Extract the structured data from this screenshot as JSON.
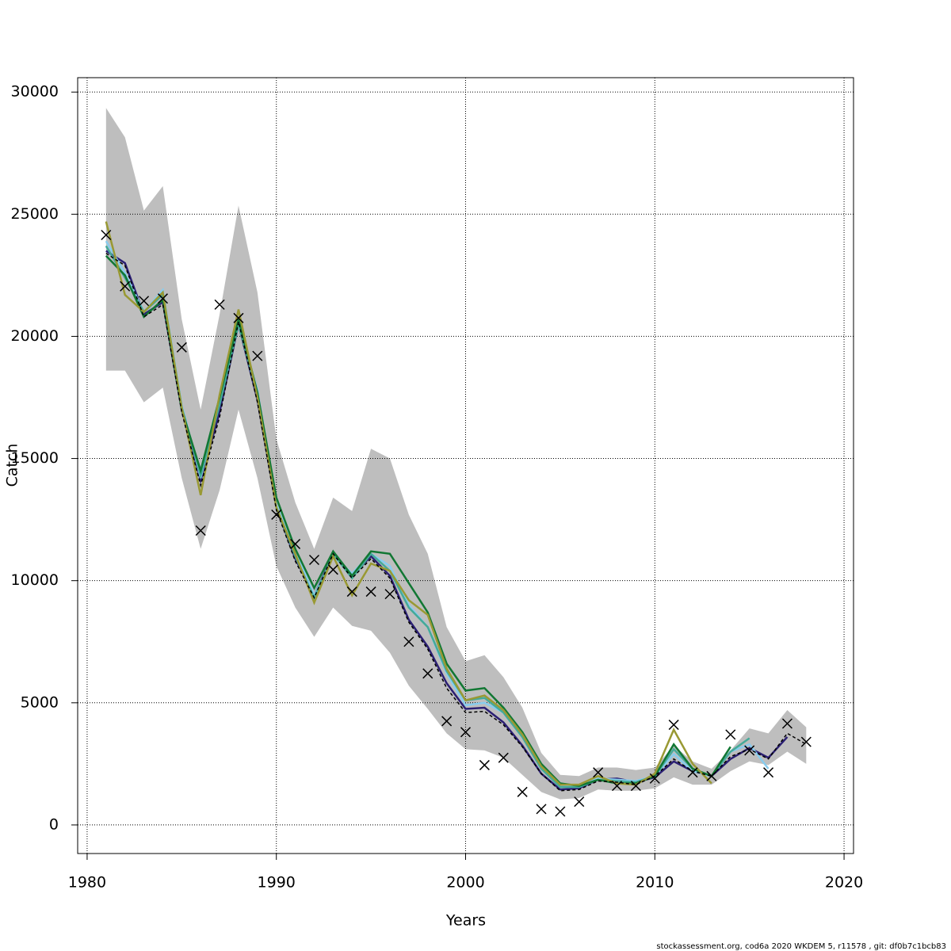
{
  "chart_data": {
    "type": "line",
    "x_label": "Years",
    "y_label": "Catch",
    "footer": "stockassessment.org, cod6a 2020 WKDEM 5, r11578 , git: df0b7c1bcb83",
    "x": [
      1981,
      1982,
      1983,
      1984,
      1985,
      1986,
      1987,
      1988,
      1989,
      1990,
      1991,
      1992,
      1993,
      1994,
      1995,
      1996,
      1997,
      1998,
      1999,
      2000,
      2001,
      2002,
      2003,
      2004,
      2005,
      2006,
      2007,
      2008,
      2009,
      2010,
      2011,
      2012,
      2013,
      2014,
      2015,
      2016,
      2017,
      2018
    ],
    "xlim": [
      1979.5,
      2020.5
    ],
    "xticks": [
      1980,
      1990,
      2000,
      2010,
      2020
    ],
    "ylim": [
      -1170,
      30590
    ],
    "yticks": [
      0,
      5000,
      10000,
      15000,
      20000,
      25000,
      30000
    ],
    "grid": true,
    "band": {
      "color": "#bebebe",
      "upper": [
        29350,
        28150,
        25150,
        26150,
        20700,
        17000,
        20900,
        25350,
        21800,
        15800,
        13200,
        11300,
        13400,
        12850,
        15400,
        15000,
        12700,
        11100,
        8100,
        6700,
        6950,
        6050,
        4800,
        2950,
        2050,
        2000,
        2350,
        2350,
        2250,
        2350,
        3250,
        2600,
        2300,
        3050,
        3950,
        3750,
        4700,
        4000
      ],
      "lower": [
        18600,
        18600,
        17300,
        17900,
        14200,
        11300,
        13700,
        17000,
        14200,
        10600,
        8900,
        7700,
        8900,
        8150,
        7950,
        7050,
        5700,
        4750,
        3750,
        3100,
        3050,
        2750,
        2050,
        1350,
        1050,
        1100,
        1450,
        1400,
        1400,
        1500,
        1950,
        1650,
        1650,
        2200,
        2600,
        2450,
        3000,
        2500
      ]
    },
    "series": [
      {
        "color": "#2b1f73",
        "values": [
          23500,
          23000,
          20900,
          21400,
          17000,
          14100,
          16900,
          20500,
          17400,
          13000,
          10900,
          9400,
          11100,
          10200,
          11000,
          10200,
          8400,
          7300,
          5800,
          4750,
          4800,
          4200,
          3250,
          2100,
          1450,
          1500,
          1850,
          1900,
          1750,
          1950,
          2600,
          2200,
          2000,
          2700,
          3150,
          2750,
          3600,
          null
        ]
      },
      {
        "color": "#88ccee",
        "values": [
          23900,
          22600,
          21000,
          21900,
          17200,
          14200,
          17300,
          20500,
          17800,
          13100,
          11200,
          9400,
          11000,
          10300,
          11100,
          10600,
          9000,
          8100,
          6200,
          4900,
          5000,
          4600,
          3600,
          2300,
          1550,
          1600,
          1900,
          1850,
          1800,
          2000,
          2900,
          2200,
          2000,
          3000,
          3300,
          2300,
          null,
          null
        ]
      },
      {
        "color": "#44aa99",
        "values": [
          23700,
          22400,
          21000,
          21700,
          17100,
          14300,
          17200,
          20500,
          17600,
          13000,
          11000,
          9300,
          11100,
          10100,
          11100,
          10400,
          8900,
          8100,
          6300,
          5100,
          5200,
          4600,
          3600,
          2300,
          1550,
          1550,
          1850,
          1800,
          1750,
          2000,
          3100,
          2300,
          2000,
          3000,
          3550,
          null,
          null,
          null
        ]
      },
      {
        "color": "#117733",
        "values": [
          23300,
          22500,
          20800,
          21500,
          17000,
          14500,
          17500,
          20700,
          17700,
          13400,
          11300,
          9700,
          11200,
          10200,
          11200,
          11100,
          9900,
          8700,
          6600,
          5500,
          5600,
          4800,
          3800,
          2500,
          1700,
          1600,
          1850,
          1700,
          1700,
          2000,
          3300,
          2300,
          2000,
          3200,
          null,
          null,
          null,
          null
        ]
      },
      {
        "color": "#999933",
        "values": [
          24700,
          21700,
          21000,
          21800,
          17100,
          13500,
          17600,
          21100,
          17500,
          13000,
          11100,
          9100,
          11000,
          9400,
          10700,
          10400,
          9200,
          8600,
          6400,
          5100,
          5300,
          4700,
          3700,
          2400,
          1650,
          1650,
          2000,
          1700,
          1650,
          2100,
          3900,
          2500,
          1700,
          null,
          null,
          null,
          null,
          null
        ]
      },
      {
        "color": "#000000",
        "dashed": true,
        "values": [
          23400,
          22900,
          20800,
          21300,
          16900,
          13900,
          16700,
          20600,
          17300,
          12900,
          10800,
          9300,
          11100,
          10100,
          10900,
          10100,
          8300,
          7200,
          5600,
          4600,
          4650,
          4100,
          3200,
          2100,
          1400,
          1450,
          1800,
          1750,
          1650,
          2000,
          2700,
          2200,
          2000,
          2800,
          3100,
          2700,
          3750,
          3300
        ]
      }
    ],
    "observed": {
      "color": "#000000",
      "values": [
        24150,
        22050,
        21450,
        21550,
        19550,
        12050,
        21300,
        20750,
        19200,
        12700,
        11500,
        10850,
        10450,
        9550,
        9550,
        9450,
        7500,
        6200,
        4250,
        3800,
        2450,
        2750,
        1350,
        650,
        550,
        950,
        2150,
        1600,
        1600,
        1900,
        4100,
        2150,
        2000,
        3700,
        3050,
        2150,
        4150,
        3400
      ]
    }
  }
}
